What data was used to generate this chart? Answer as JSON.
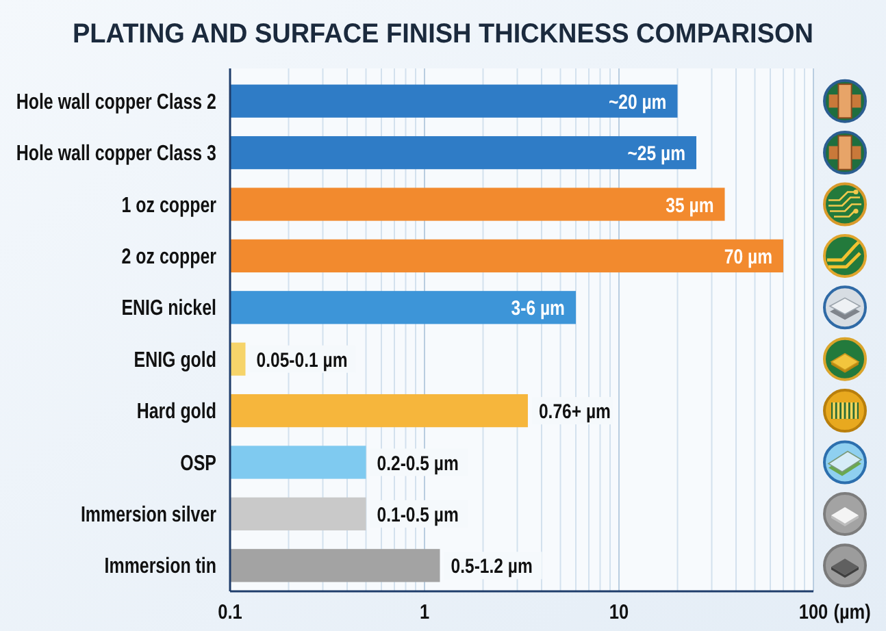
{
  "chart_data": {
    "type": "bar",
    "orientation": "horizontal",
    "title": "PLATING AND SURFACE FINISH THICKNESS COMPARISON",
    "xlabel": "(µm)",
    "categories": [
      "Hole wall copper Class 2",
      "Hole wall copper Class 3",
      "1 oz copper",
      "2 oz copper",
      "ENIG nickel",
      "ENIG gold",
      "Hard gold",
      "OSP",
      "Immersion silver",
      "Immersion tin"
    ],
    "values": [
      20,
      25,
      35,
      70,
      6,
      0.12,
      3.4,
      0.5,
      0.5,
      1.2
    ],
    "colors": [
      "#2f7cc6",
      "#2f7cc6",
      "#f28a2e",
      "#f28a2e",
      "#3d95d8",
      "#f6d46a",
      "#f6b63c",
      "#7fcaf0",
      "#c9c9c9",
      "#a3a3a3"
    ],
    "value_labels": [
      "~20 µm",
      "~25 µm",
      "35 µm",
      "70 µm",
      "3-6 µm",
      "0.05-0.1 µm",
      "0.76+ µm",
      "0.2-0.5 µm",
      "0.1-0.5 µm",
      "0.5-1.2 µm"
    ],
    "log": "x",
    "xlim": [
      0.1,
      100
    ],
    "xticks": [
      0.1,
      {
        "value": 0.2,
        "label": null
      },
      {
        "value": 0.3,
        "label": null
      },
      {
        "value": 0.4,
        "label": null
      },
      {
        "value": 0.5,
        "label": null
      },
      {
        "value": 0.6,
        "label": null
      },
      {
        "value": 0.7,
        "label": null
      },
      {
        "value": 0.8,
        "label": null
      },
      {
        "value": 0.9,
        "label": null
      },
      1,
      {
        "value": 2,
        "label": null
      },
      {
        "value": 3,
        "label": null
      },
      {
        "value": 4,
        "label": null
      },
      {
        "value": 5,
        "label": null
      },
      {
        "value": 6,
        "label": null
      },
      {
        "value": 7,
        "label": null
      },
      {
        "value": 8,
        "label": null
      },
      {
        "value": 9,
        "label": null
      },
      10,
      {
        "value": 20,
        "label": null
      },
      {
        "value": 30,
        "label": null
      },
      {
        "value": 40,
        "label": null
      },
      {
        "value": 50,
        "label": null
      },
      {
        "value": 60,
        "label": null
      },
      {
        "value": 70,
        "label": null
      },
      {
        "value": 80,
        "label": null
      },
      {
        "value": 90,
        "label": null
      },
      100
    ],
    "grid": "x"
  }
}
